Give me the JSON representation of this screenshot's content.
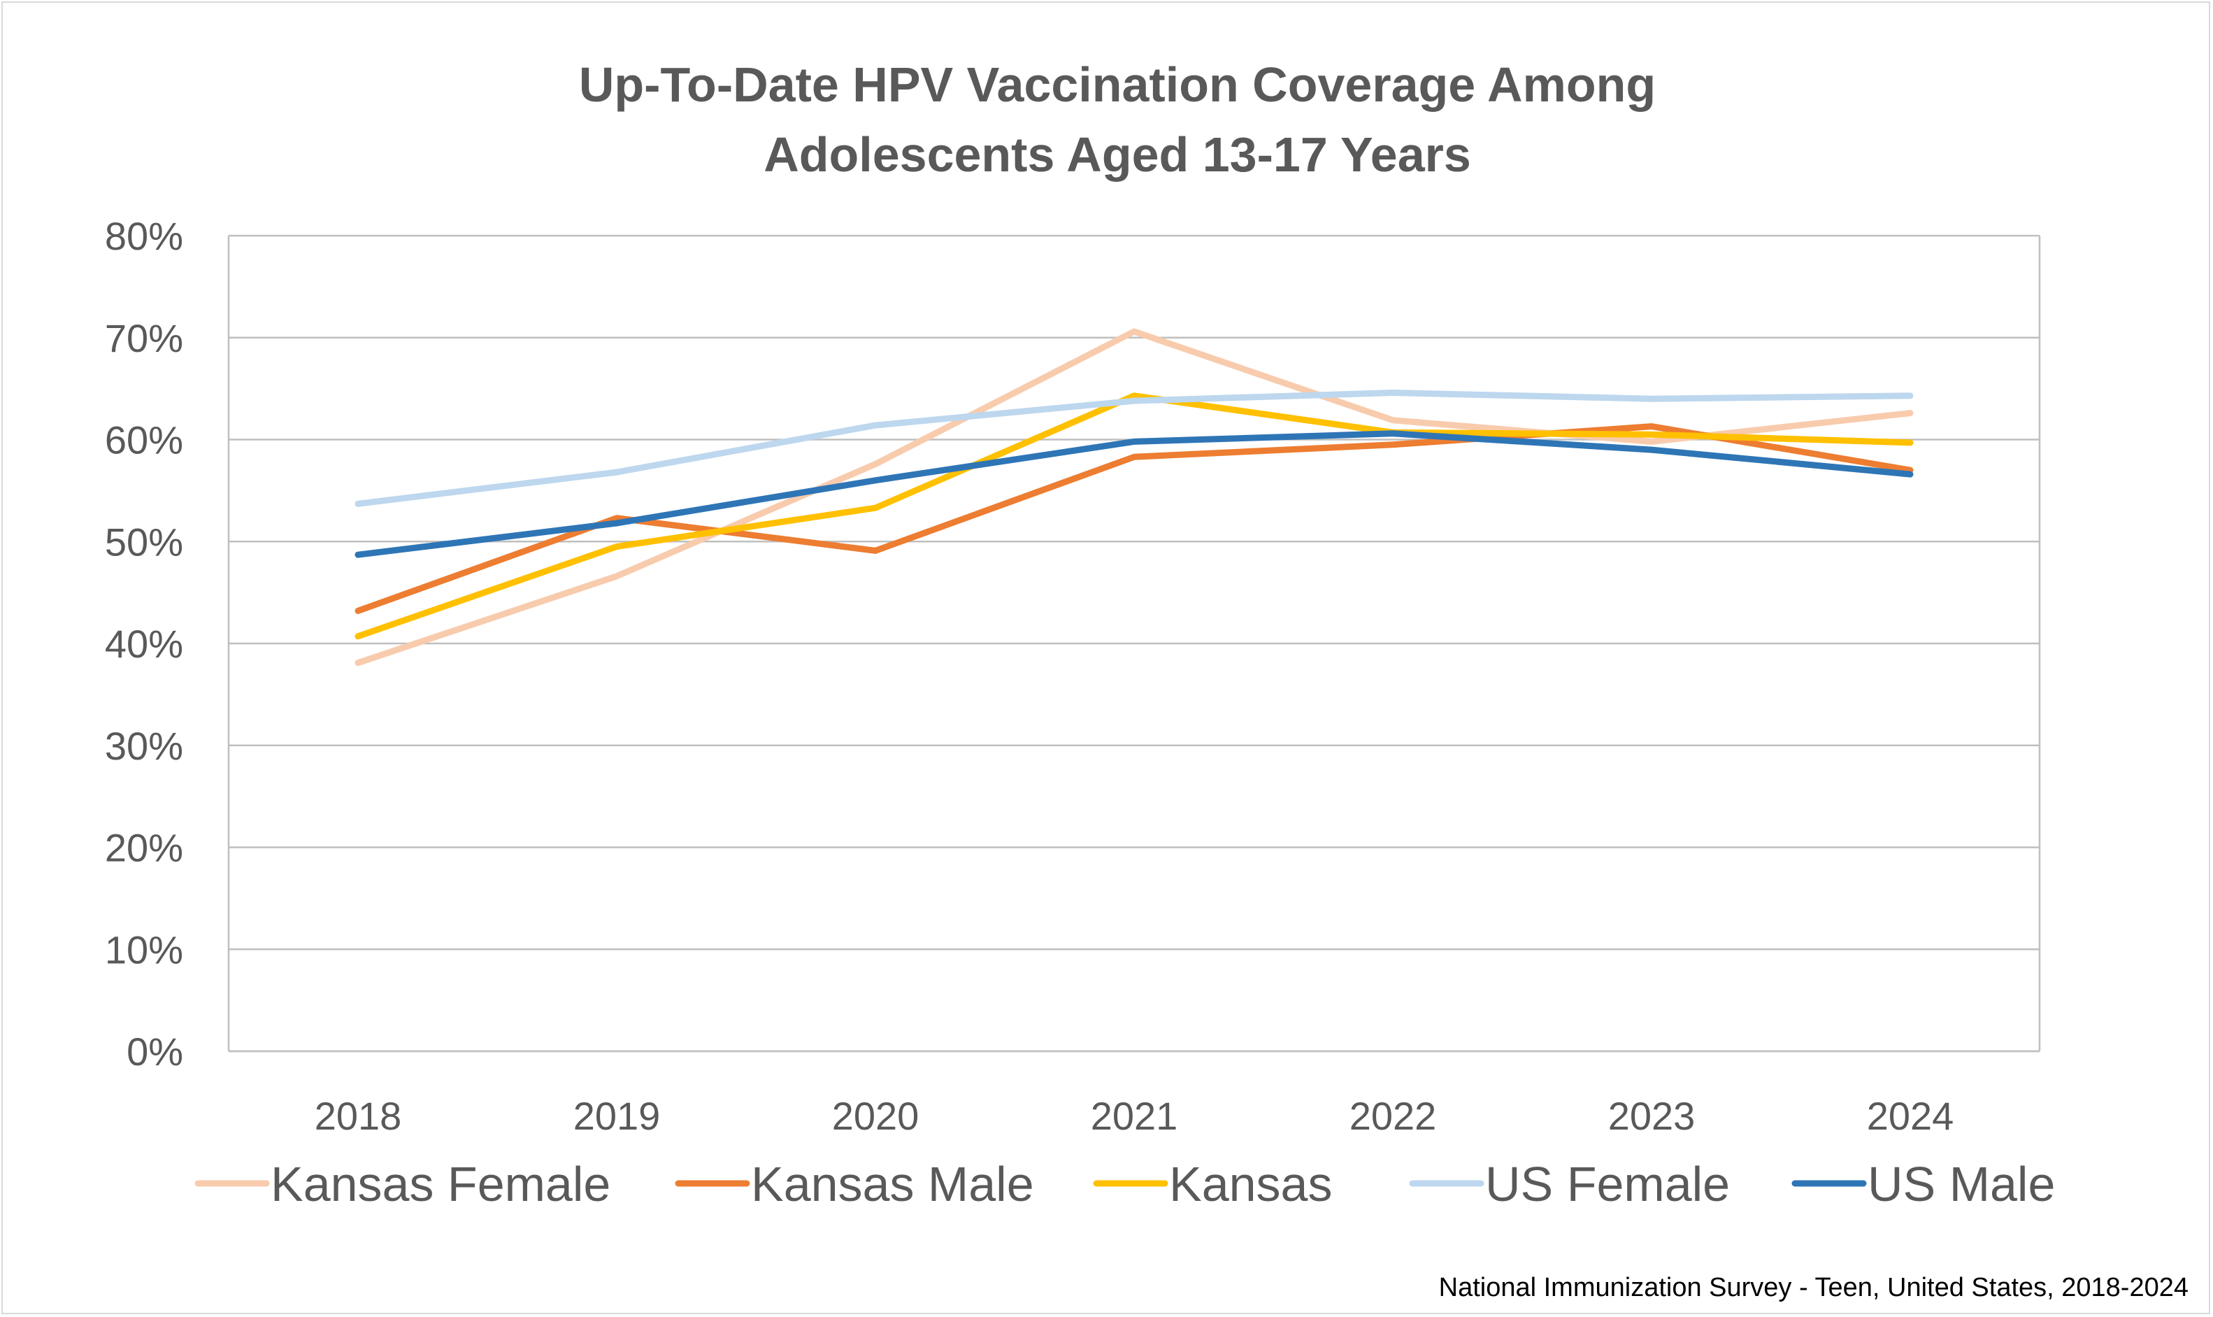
{
  "chart_data": {
    "type": "line",
    "title": "Up-To-Date HPV Vaccination Coverage Among Adolescents Aged 13-17 Years",
    "title_lines": [
      "Up-To-Date HPV Vaccination Coverage Among",
      "Adolescents Aged 13-17 Years"
    ],
    "categories": [
      "2018",
      "2019",
      "2020",
      "2021",
      "2022",
      "2023",
      "2024"
    ],
    "ylim": [
      0,
      80
    ],
    "yticks": [
      0,
      10,
      20,
      30,
      40,
      50,
      60,
      70,
      80
    ],
    "ytick_labels": [
      "0%",
      "10%",
      "20%",
      "30%",
      "40%",
      "50%",
      "60%",
      "70%",
      "80%"
    ],
    "grid": true,
    "legend": "bottom",
    "series": [
      {
        "name": "Kansas Female",
        "color": "#f8cbad",
        "values": [
          38.1,
          46.6,
          57.6,
          70.6,
          61.9,
          59.8,
          62.6
        ]
      },
      {
        "name": "Kansas Male",
        "color": "#ed7d31",
        "values": [
          43.2,
          52.3,
          49.1,
          58.3,
          59.5,
          61.3,
          57.0
        ]
      },
      {
        "name": "Kansas",
        "color": "#ffc000",
        "values": [
          40.7,
          49.5,
          53.3,
          64.3,
          60.7,
          60.5,
          59.7
        ]
      },
      {
        "name": "US Female",
        "color": "#bdd7ee",
        "values": [
          53.7,
          56.8,
          61.4,
          63.8,
          64.6,
          64.0,
          64.3
        ]
      },
      {
        "name": "US Male",
        "color": "#2e75b6",
        "values": [
          48.7,
          51.8,
          56.0,
          59.8,
          60.6,
          59.0,
          56.6
        ]
      }
    ],
    "source_note": "National Immunization Survey - Teen, United States, 2018-2024"
  }
}
